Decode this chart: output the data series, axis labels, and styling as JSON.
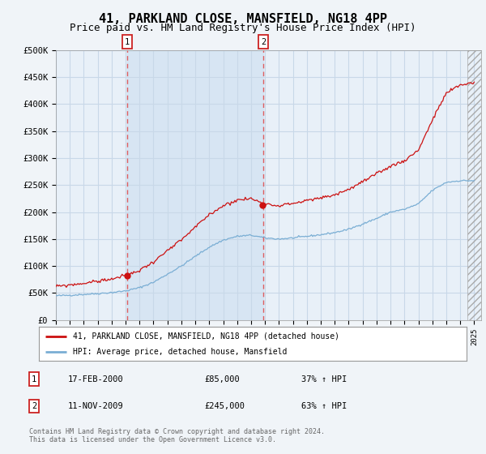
{
  "title": "41, PARKLAND CLOSE, MANSFIELD, NG18 4PP",
  "subtitle": "Price paid vs. HM Land Registry's House Price Index (HPI)",
  "title_fontsize": 11,
  "subtitle_fontsize": 9,
  "ylabel_ticks": [
    "£0",
    "£50K",
    "£100K",
    "£150K",
    "£200K",
    "£250K",
    "£300K",
    "£350K",
    "£400K",
    "£450K",
    "£500K"
  ],
  "ytick_values": [
    0,
    50000,
    100000,
    150000,
    200000,
    250000,
    300000,
    350000,
    400000,
    450000,
    500000
  ],
  "ylim": [
    0,
    500000
  ],
  "xlim_start": 1995.0,
  "xlim_end": 2025.5,
  "bg_color": "#f0f4f8",
  "plot_bg_color": "#e8f0f8",
  "grid_color": "#c8d8e8",
  "transaction1_x": 2000.12,
  "transaction2_x": 2009.87,
  "transaction1_price": 85000,
  "transaction2_price": 245000,
  "vline_color": "#e05050",
  "marker_box_color": "#cc2222",
  "shade_color": "#c8dcf0",
  "legend_line1": "41, PARKLAND CLOSE, MANSFIELD, NG18 4PP (detached house)",
  "legend_line2": "HPI: Average price, detached house, Mansfield",
  "ann1_label": "1",
  "ann1_date": "17-FEB-2000",
  "ann1_price": "£85,000",
  "ann1_hpi": "37% ↑ HPI",
  "ann2_label": "2",
  "ann2_date": "11-NOV-2009",
  "ann2_price": "£245,000",
  "ann2_hpi": "63% ↑ HPI",
  "copyright_text": "Contains HM Land Registry data © Crown copyright and database right 2024.\nThis data is licensed under the Open Government Licence v3.0.",
  "red_line_color": "#cc1111",
  "blue_line_color": "#7aaed4",
  "dot_color": "#cc1111"
}
